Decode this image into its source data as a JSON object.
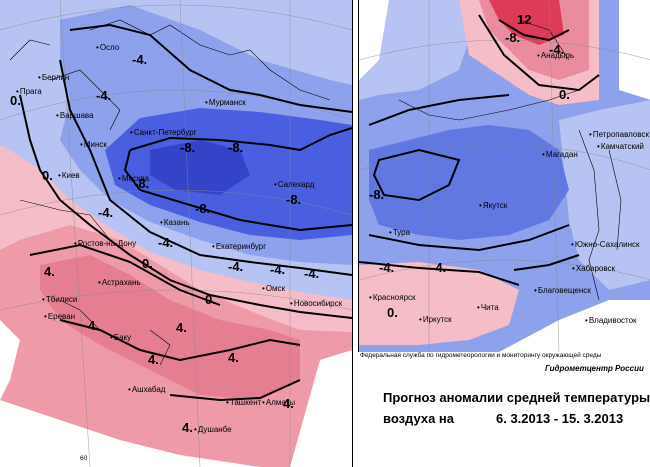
{
  "colors": {
    "strong_cold": "#3c4fd8",
    "cold": "#6f86e6",
    "mild_cold": "#b7c3f3",
    "mild_warm": "#f4bdc8",
    "warm": "#ea8c9e",
    "hot": "#dc3c58",
    "border": "#000000"
  },
  "left_map": {
    "cities": [
      "Осло",
      "Берлин",
      "Прага",
      "Варшава",
      "Минск",
      "Киев",
      "Мурманск",
      "Санкт-Петербург",
      "Москва",
      "Салехард",
      "Казань",
      "Екатеринбург",
      "Ростов-на-Дону",
      "Астрахань",
      "Тбилиси",
      "Ереван",
      "Баку",
      "Омск",
      "Новосибирск",
      "Ашхабад",
      "Ташкент",
      "Алматы",
      "Душанбе"
    ],
    "isoline_labels": [
      "-4.",
      "-4.",
      "0.",
      "0.",
      "-8.",
      "-8.",
      "-8.",
      "-8.",
      "-8.",
      "-4.",
      "-4.",
      "-4.",
      "-4.",
      "-4.",
      "0.",
      "0.",
      "4.",
      "4.",
      "4.",
      "4.",
      "4.",
      "4.",
      "4."
    ],
    "axis_label": "60"
  },
  "right_map": {
    "cities": [
      "Анадырь",
      "Петропавловск",
      "Камчатский",
      "Магадан",
      "Якутск",
      "Тура",
      "Южно-Сахалинск",
      "Хабаровск",
      "Благовещенск",
      "Красноярск",
      "Иркутск",
      "Чита",
      "Владивосток"
    ],
    "isoline_labels": [
      "12",
      "-8.",
      "-4.",
      "0.",
      "-8.",
      "-4.",
      "-4.",
      "0."
    ]
  },
  "credit": "Федеральная служба по гидрометеорологии и мониторингу окружающей среды",
  "agency": "Гидрометцентр России",
  "title_line1": "Прогноз аномалии средней температуры",
  "title_line2": "воздуха на",
  "date_range": "6. 3.2013 - 15. 3.2013"
}
